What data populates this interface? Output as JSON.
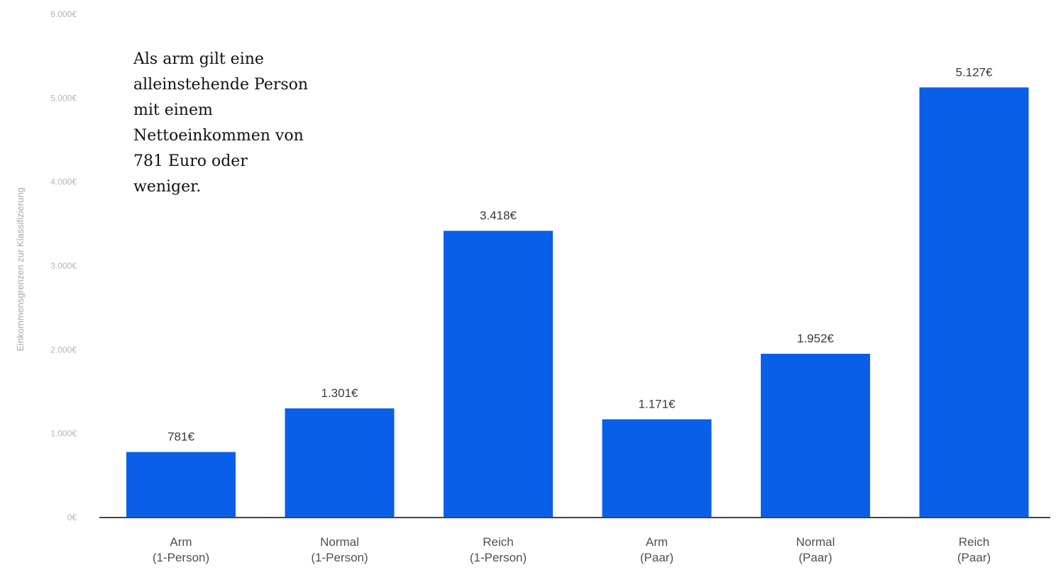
{
  "chart_data": {
    "type": "bar",
    "ylabel": "Einkommensgrenzen zur Klassifizierung",
    "ylim": [
      0,
      6000
    ],
    "yticks": [
      0,
      1000,
      2000,
      3000,
      4000,
      5000,
      6000
    ],
    "ytick_labels": [
      "0€",
      "1.000€",
      "2.000€",
      "3.000€",
      "4.000€",
      "5.000€",
      "6.000€"
    ],
    "categories": [
      [
        "Arm",
        "(1-Person)"
      ],
      [
        "Normal",
        "(1-Person)"
      ],
      [
        "Reich",
        "(1-Person)"
      ],
      [
        "Arm",
        "(Paar)"
      ],
      [
        "Normal",
        "(Paar)"
      ],
      [
        "Reich",
        "(Paar)"
      ]
    ],
    "values": [
      781,
      1301,
      3418,
      1171,
      1952,
      5127
    ],
    "value_labels": [
      "781€",
      "1.301€",
      "3.418€",
      "1.171€",
      "1.952€",
      "5.127€"
    ],
    "bar_color": "#0a5fe8",
    "axis_color": "#444444",
    "grid": false,
    "annotation": "Als arm gilt eine alleinstehende Person mit einem Nettoeinkommen von 781 Euro oder weniger."
  }
}
